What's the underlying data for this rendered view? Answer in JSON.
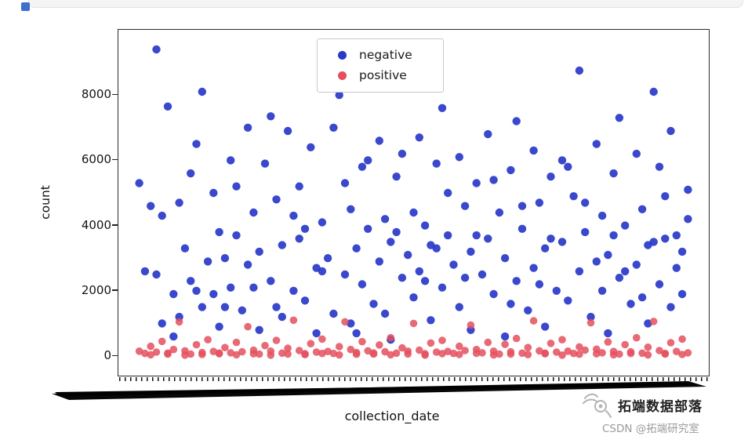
{
  "page": {
    "top_fragment": "code-block-edge",
    "watermark": {
      "brand": "拓端数据部落",
      "credit": "CSDN @拓端研究室"
    }
  },
  "chart_data": {
    "type": "scatter",
    "title": "",
    "xlabel": "collection_date",
    "ylabel": "count",
    "ylim": [
      -600,
      10000
    ],
    "yticks": [
      0,
      2000,
      4000,
      6000,
      8000
    ],
    "x_axis_note": "dense rotated collection_date tick labels overlap into a solid black band",
    "grid": false,
    "legend_position": "upper center",
    "series": [
      {
        "name": "negative",
        "color": "#2838c8",
        "opacity": 0.92,
        "marker_radius": 5.2,
        "points": [
          [
            2,
            5300
          ],
          [
            3,
            2600
          ],
          [
            4,
            4600
          ],
          [
            5,
            9400
          ],
          [
            5,
            2500
          ],
          [
            6,
            4300
          ],
          [
            6,
            1000
          ],
          [
            7,
            7650
          ],
          [
            8,
            1900
          ],
          [
            8,
            600
          ],
          [
            9,
            4700
          ],
          [
            9,
            1200
          ],
          [
            10,
            3300
          ],
          [
            11,
            2300
          ],
          [
            11,
            5600
          ],
          [
            12,
            6500
          ],
          [
            12,
            2000
          ],
          [
            13,
            8100
          ],
          [
            13,
            1500
          ],
          [
            14,
            2900
          ],
          [
            15,
            5000
          ],
          [
            15,
            1900
          ],
          [
            16,
            3800
          ],
          [
            16,
            900
          ],
          [
            17,
            3000
          ],
          [
            17,
            1500
          ],
          [
            18,
            6000
          ],
          [
            18,
            2100
          ],
          [
            19,
            3700
          ],
          [
            19,
            5200
          ],
          [
            20,
            1400
          ],
          [
            21,
            7000
          ],
          [
            21,
            2800
          ],
          [
            22,
            4400
          ],
          [
            22,
            2100
          ],
          [
            23,
            3200
          ],
          [
            23,
            800
          ],
          [
            24,
            5900
          ],
          [
            25,
            7350
          ],
          [
            25,
            2300
          ],
          [
            26,
            4800
          ],
          [
            26,
            1500
          ],
          [
            27,
            3400
          ],
          [
            27,
            1200
          ],
          [
            28,
            6900
          ],
          [
            29,
            2000
          ],
          [
            29,
            4300
          ],
          [
            30,
            5200
          ],
          [
            30,
            3600
          ],
          [
            31,
            1700
          ],
          [
            31,
            3900
          ],
          [
            32,
            6400
          ],
          [
            33,
            2700
          ],
          [
            33,
            700
          ],
          [
            34,
            4100
          ],
          [
            34,
            2600
          ],
          [
            35,
            3000
          ],
          [
            36,
            7000
          ],
          [
            36,
            1300
          ],
          [
            37,
            8000
          ],
          [
            38,
            2500
          ],
          [
            38,
            5300
          ],
          [
            39,
            4500
          ],
          [
            39,
            1000
          ],
          [
            40,
            3300
          ],
          [
            40,
            700
          ],
          [
            41,
            5800
          ],
          [
            41,
            2200
          ],
          [
            42,
            3900
          ],
          [
            42,
            6000
          ],
          [
            43,
            1600
          ],
          [
            44,
            6600
          ],
          [
            44,
            2900
          ],
          [
            45,
            4200
          ],
          [
            45,
            1300
          ],
          [
            46,
            3500
          ],
          [
            46,
            500
          ],
          [
            47,
            5500
          ],
          [
            47,
            3800
          ],
          [
            48,
            2400
          ],
          [
            48,
            6200
          ],
          [
            49,
            3100
          ],
          [
            50,
            1800
          ],
          [
            50,
            4400
          ],
          [
            51,
            6700
          ],
          [
            51,
            2600
          ],
          [
            52,
            4000
          ],
          [
            52,
            2300
          ],
          [
            53,
            3400
          ],
          [
            53,
            1100
          ],
          [
            54,
            5900
          ],
          [
            54,
            3300
          ],
          [
            55,
            2100
          ],
          [
            55,
            7600
          ],
          [
            56,
            3700
          ],
          [
            56,
            5000
          ],
          [
            57,
            2800
          ],
          [
            58,
            6100
          ],
          [
            58,
            1500
          ],
          [
            59,
            4600
          ],
          [
            59,
            2400
          ],
          [
            60,
            3200
          ],
          [
            60,
            800
          ],
          [
            61,
            5300
          ],
          [
            61,
            3700
          ],
          [
            62,
            2500
          ],
          [
            63,
            6800
          ],
          [
            63,
            3600
          ],
          [
            64,
            1900
          ],
          [
            64,
            5400
          ],
          [
            65,
            4400
          ],
          [
            66,
            3000
          ],
          [
            66,
            600
          ],
          [
            67,
            5700
          ],
          [
            67,
            1600
          ],
          [
            68,
            2300
          ],
          [
            68,
            7200
          ],
          [
            69,
            3900
          ],
          [
            69,
            4600
          ],
          [
            70,
            1400
          ],
          [
            71,
            6300
          ],
          [
            71,
            2700
          ],
          [
            72,
            4700
          ],
          [
            72,
            2200
          ],
          [
            73,
            3300
          ],
          [
            73,
            900
          ],
          [
            74,
            5500
          ],
          [
            74,
            3600
          ],
          [
            75,
            2000
          ],
          [
            76,
            6000
          ],
          [
            76,
            3500
          ],
          [
            77,
            1700
          ],
          [
            77,
            5800
          ],
          [
            78,
            4900
          ],
          [
            79,
            8750
          ],
          [
            79,
            2600
          ],
          [
            80,
            3800
          ],
          [
            80,
            4700
          ],
          [
            81,
            1200
          ],
          [
            82,
            6500
          ],
          [
            82,
            2900
          ],
          [
            83,
            4300
          ],
          [
            83,
            2000
          ],
          [
            84,
            3100
          ],
          [
            84,
            700
          ],
          [
            85,
            5600
          ],
          [
            85,
            3700
          ],
          [
            86,
            2400
          ],
          [
            86,
            7300
          ],
          [
            87,
            4000
          ],
          [
            87,
            2600
          ],
          [
            88,
            1600
          ],
          [
            89,
            6200
          ],
          [
            89,
            2800
          ],
          [
            90,
            4500
          ],
          [
            90,
            1800
          ],
          [
            91,
            3400
          ],
          [
            91,
            1000
          ],
          [
            92,
            8100
          ],
          [
            92,
            3500
          ],
          [
            93,
            2200
          ],
          [
            93,
            5800
          ],
          [
            94,
            3600
          ],
          [
            94,
            4900
          ],
          [
            95,
            1500
          ],
          [
            95,
            6900
          ],
          [
            96,
            2700
          ],
          [
            96,
            3700
          ],
          [
            97,
            3200
          ],
          [
            97,
            1900
          ],
          [
            98,
            5100
          ],
          [
            98,
            4200
          ]
        ]
      },
      {
        "name": "positive",
        "color": "#e4505e",
        "opacity": 0.85,
        "marker_radius": 4.8,
        "points": [
          [
            2,
            150
          ],
          [
            3,
            80
          ],
          [
            4,
            300
          ],
          [
            4,
            40
          ],
          [
            5,
            120
          ],
          [
            6,
            450
          ],
          [
            7,
            90
          ],
          [
            7,
            60
          ],
          [
            8,
            200
          ],
          [
            9,
            1050
          ],
          [
            10,
            160
          ],
          [
            10,
            30
          ],
          [
            11,
            60
          ],
          [
            12,
            350
          ],
          [
            13,
            110
          ],
          [
            13,
            50
          ],
          [
            14,
            500
          ],
          [
            15,
            140
          ],
          [
            16,
            70
          ],
          [
            16,
            90
          ],
          [
            17,
            260
          ],
          [
            18,
            100
          ],
          [
            19,
            420
          ],
          [
            19,
            40
          ],
          [
            20,
            130
          ],
          [
            21,
            900
          ],
          [
            22,
            180
          ],
          [
            22,
            70
          ],
          [
            23,
            60
          ],
          [
            24,
            320
          ],
          [
            25,
            150
          ],
          [
            25,
            30
          ],
          [
            26,
            480
          ],
          [
            27,
            90
          ],
          [
            28,
            240
          ],
          [
            28,
            60
          ],
          [
            29,
            1100
          ],
          [
            30,
            170
          ],
          [
            31,
            70
          ],
          [
            31,
            45
          ],
          [
            32,
            380
          ],
          [
            33,
            120
          ],
          [
            34,
            520
          ],
          [
            34,
            80
          ],
          [
            35,
            140
          ],
          [
            36,
            80
          ],
          [
            37,
            290
          ],
          [
            37,
            35
          ],
          [
            38,
            1050
          ],
          [
            39,
            200
          ],
          [
            40,
            110
          ],
          [
            40,
            55
          ],
          [
            41,
            440
          ],
          [
            42,
            160
          ],
          [
            43,
            60
          ],
          [
            43,
            95
          ],
          [
            44,
            340
          ],
          [
            45,
            130
          ],
          [
            46,
            560
          ],
          [
            46,
            40
          ],
          [
            47,
            90
          ],
          [
            48,
            250
          ],
          [
            49,
            150
          ],
          [
            49,
            65
          ],
          [
            50,
            1000
          ],
          [
            51,
            180
          ],
          [
            52,
            70
          ],
          [
            52,
            30
          ],
          [
            53,
            400
          ],
          [
            54,
            120
          ],
          [
            55,
            480
          ],
          [
            55,
            75
          ],
          [
            56,
            140
          ],
          [
            57,
            80
          ],
          [
            58,
            300
          ],
          [
            58,
            50
          ],
          [
            59,
            170
          ],
          [
            60,
            950
          ],
          [
            61,
            200
          ],
          [
            61,
            85
          ],
          [
            62,
            100
          ],
          [
            63,
            420
          ],
          [
            64,
            150
          ],
          [
            64,
            35
          ],
          [
            65,
            60
          ],
          [
            66,
            360
          ],
          [
            67,
            130
          ],
          [
            67,
            60
          ],
          [
            68,
            540
          ],
          [
            69,
            90
          ],
          [
            70,
            260
          ],
          [
            70,
            45
          ],
          [
            71,
            1080
          ],
          [
            72,
            160
          ],
          [
            73,
            70
          ],
          [
            73,
            90
          ],
          [
            74,
            390
          ],
          [
            75,
            120
          ],
          [
            76,
            500
          ],
          [
            76,
            30
          ],
          [
            77,
            150
          ],
          [
            78,
            80
          ],
          [
            79,
            280
          ],
          [
            79,
            55
          ],
          [
            80,
            180
          ],
          [
            81,
            1020
          ],
          [
            82,
            210
          ],
          [
            82,
            70
          ],
          [
            83,
            100
          ],
          [
            84,
            430
          ],
          [
            85,
            140
          ],
          [
            85,
            40
          ],
          [
            86,
            60
          ],
          [
            87,
            350
          ],
          [
            88,
            130
          ],
          [
            88,
            80
          ],
          [
            89,
            560
          ],
          [
            90,
            90
          ],
          [
            91,
            270
          ],
          [
            91,
            35
          ],
          [
            92,
            1060
          ],
          [
            93,
            170
          ],
          [
            94,
            80
          ],
          [
            94,
            60
          ],
          [
            95,
            410
          ],
          [
            96,
            140
          ],
          [
            97,
            520
          ],
          [
            97,
            50
          ],
          [
            98,
            100
          ]
        ]
      }
    ]
  }
}
